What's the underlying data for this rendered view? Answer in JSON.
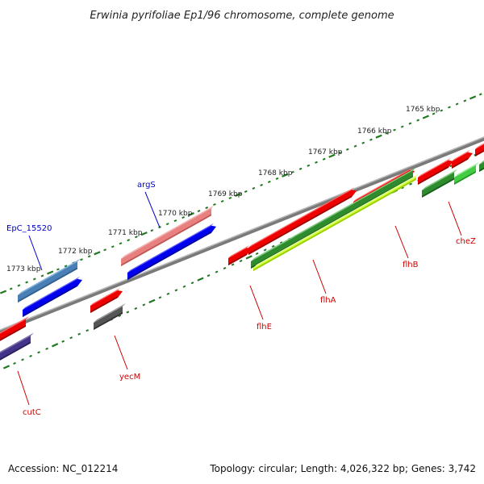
{
  "title": "Erwinia pyrifoliae Ep1/96 chromosome, complete genome",
  "footer": {
    "accession": "Accession: NC_012214",
    "genome_info": "Topology: circular; Length: 4,026,322 bp; Genes: 3,742"
  },
  "ticks": [
    {
      "label": "1773 kbp"
    },
    {
      "label": "1772 kbp"
    },
    {
      "label": "1771 kbp"
    },
    {
      "label": "1770 kbp"
    },
    {
      "label": "1769 kbp"
    },
    {
      "label": "1768 kbp"
    },
    {
      "label": "1767 kbp"
    },
    {
      "label": "1766 kbp"
    },
    {
      "label": "1765 kbp"
    }
  ],
  "genes": [
    {
      "name": "EpC_15520",
      "color": "#0000cc"
    },
    {
      "name": "argS",
      "color": "#0000cc"
    },
    {
      "name": "flhE",
      "color": "#cc0000"
    },
    {
      "name": "flhA",
      "color": "#cc0000"
    },
    {
      "name": "flhB",
      "color": "#cc0000"
    },
    {
      "name": "cheZ",
      "color": "#cc0000"
    },
    {
      "name": "yecM",
      "color": "#cc0000"
    },
    {
      "name": "cutC",
      "color": "#cc0000"
    }
  ]
}
